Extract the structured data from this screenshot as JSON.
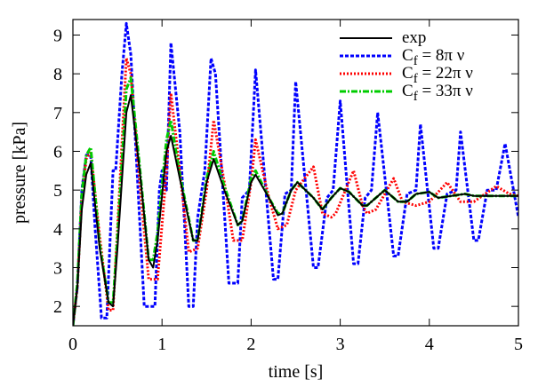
{
  "chart_data": {
    "type": "line",
    "title": "",
    "xlabel": "time [s]",
    "ylabel": "pressure [kPa]",
    "xlim": [
      0,
      5
    ],
    "ylim": [
      1.5,
      9.4
    ],
    "xticks": [
      "0",
      "1",
      "2",
      "3",
      "4",
      "5"
    ],
    "yticks": [
      "2",
      "3",
      "4",
      "5",
      "6",
      "7",
      "8",
      "9"
    ],
    "grid": false,
    "legend_position": "top-right",
    "series": [
      {
        "name": "exp",
        "color": "#000000",
        "style": "solid",
        "x": [
          0.0,
          0.05,
          0.1,
          0.15,
          0.2,
          0.3,
          0.4,
          0.45,
          0.5,
          0.6,
          0.65,
          0.75,
          0.85,
          0.9,
          0.95,
          1.05,
          1.1,
          1.2,
          1.35,
          1.4,
          1.5,
          1.58,
          1.7,
          1.85,
          1.9,
          2.0,
          2.05,
          2.2,
          2.3,
          2.35,
          2.45,
          2.52,
          2.7,
          2.8,
          2.9,
          3.0,
          3.1,
          3.25,
          3.3,
          3.45,
          3.5,
          3.65,
          3.75,
          3.85,
          4.0,
          4.1,
          4.25,
          4.4,
          4.5,
          4.7,
          4.9,
          5.0
        ],
        "y": [
          1.5,
          2.5,
          4.5,
          5.4,
          5.7,
          3.5,
          2.1,
          2.0,
          3.5,
          7.0,
          7.45,
          5.5,
          3.2,
          3.0,
          3.7,
          6.0,
          6.4,
          5.3,
          3.7,
          3.7,
          5.2,
          5.8,
          5.0,
          4.1,
          4.2,
          5.2,
          5.4,
          4.8,
          4.35,
          4.4,
          5.0,
          5.2,
          4.8,
          4.5,
          4.8,
          5.05,
          4.95,
          4.6,
          4.6,
          4.9,
          5.0,
          4.7,
          4.7,
          4.9,
          4.95,
          4.8,
          4.85,
          4.9,
          4.85,
          4.85,
          4.85,
          4.85
        ]
      },
      {
        "name": "C_f = 8π ν",
        "color": "#0000ff",
        "style": "dashed",
        "x": [
          0.0,
          0.05,
          0.1,
          0.15,
          0.2,
          0.25,
          0.32,
          0.38,
          0.45,
          0.48,
          0.55,
          0.6,
          0.65,
          0.72,
          0.8,
          0.85,
          0.92,
          0.97,
          1.0,
          1.05,
          1.1,
          1.2,
          1.3,
          1.35,
          1.4,
          1.48,
          1.55,
          1.6,
          1.75,
          1.8,
          1.85,
          1.9,
          1.98,
          2.05,
          2.25,
          2.3,
          2.38,
          2.45,
          2.5,
          2.7,
          2.75,
          2.85,
          2.92,
          3.0,
          3.15,
          3.2,
          3.28,
          3.35,
          3.42,
          3.6,
          3.65,
          3.75,
          3.85,
          3.9,
          4.05,
          4.1,
          4.2,
          4.3,
          4.35,
          4.5,
          4.55,
          4.65,
          4.75,
          4.85,
          5.0
        ],
        "y": [
          1.5,
          2.5,
          5.0,
          5.9,
          5.9,
          4.0,
          1.7,
          1.7,
          5.5,
          5.5,
          8.0,
          9.3,
          8.5,
          5.5,
          2.0,
          2.0,
          2.0,
          5.0,
          5.5,
          5.0,
          8.8,
          6.5,
          2.0,
          2.0,
          4.3,
          5.5,
          8.4,
          8.0,
          2.6,
          2.6,
          2.6,
          4.8,
          5.0,
          8.1,
          2.7,
          2.7,
          4.9,
          5.0,
          7.8,
          3.0,
          3.0,
          4.8,
          5.0,
          7.3,
          3.1,
          3.1,
          4.8,
          5.0,
          7.0,
          3.3,
          3.3,
          4.9,
          5.0,
          6.7,
          3.5,
          3.5,
          4.9,
          5.0,
          6.5,
          3.7,
          3.7,
          5.0,
          5.0,
          6.2,
          4.3
        ]
      },
      {
        "name": "C_f = 22π ν",
        "color": "#ff0000",
        "style": "dotted",
        "x": [
          0.0,
          0.05,
          0.1,
          0.15,
          0.2,
          0.3,
          0.4,
          0.45,
          0.5,
          0.6,
          0.65,
          0.75,
          0.85,
          0.95,
          1.05,
          1.1,
          1.2,
          1.3,
          1.4,
          1.5,
          1.58,
          1.7,
          1.8,
          1.9,
          2.0,
          2.05,
          2.2,
          2.3,
          2.4,
          2.5,
          2.7,
          2.8,
          2.9,
          2.95,
          3.15,
          3.25,
          3.3,
          3.4,
          3.6,
          3.7,
          3.85,
          4.0,
          4.2,
          4.35,
          4.5,
          4.75,
          4.9,
          5.0
        ],
        "y": [
          1.5,
          2.5,
          4.8,
          5.8,
          6.0,
          3.8,
          1.9,
          1.9,
          4.0,
          8.4,
          8.0,
          5.2,
          2.7,
          2.7,
          5.5,
          7.5,
          5.5,
          3.4,
          3.5,
          5.0,
          6.8,
          5.2,
          3.7,
          3.7,
          5.2,
          6.3,
          4.8,
          4.0,
          4.1,
          5.0,
          5.6,
          4.4,
          4.3,
          4.4,
          5.5,
          4.6,
          4.4,
          4.5,
          5.3,
          4.7,
          4.6,
          4.7,
          5.2,
          4.7,
          4.7,
          5.1,
          4.9,
          4.85
        ]
      },
      {
        "name": "C_f = 33π ν",
        "color": "#00cc00",
        "style": "dashdot",
        "x": [
          0.0,
          0.05,
          0.1,
          0.15,
          0.2,
          0.3,
          0.4,
          0.45,
          0.5,
          0.6,
          0.65,
          0.75,
          0.85,
          0.9,
          0.95,
          1.05,
          1.1,
          1.2,
          1.35,
          1.4,
          1.5,
          1.58,
          1.7,
          1.85,
          1.9,
          2.0,
          2.05,
          2.2,
          2.3,
          2.35,
          2.45,
          2.52,
          2.7,
          2.8,
          2.9,
          3.0,
          3.1,
          3.25,
          3.3,
          3.45,
          3.5,
          3.65,
          3.75,
          3.85,
          4.0,
          4.1,
          4.25,
          4.4,
          4.5,
          4.7,
          4.9,
          5.0
        ],
        "y": [
          1.5,
          2.6,
          4.9,
          5.9,
          6.1,
          3.6,
          2.1,
          2.1,
          3.8,
          7.6,
          7.9,
          5.6,
          3.2,
          3.2,
          3.9,
          6.3,
          6.8,
          5.4,
          3.7,
          3.7,
          5.3,
          6.0,
          5.1,
          4.1,
          4.2,
          5.3,
          5.5,
          4.8,
          4.4,
          4.4,
          5.0,
          5.2,
          4.8,
          4.5,
          4.8,
          5.05,
          4.95,
          4.6,
          4.6,
          4.9,
          5.0,
          4.7,
          4.7,
          4.9,
          4.95,
          4.8,
          4.85,
          4.9,
          4.85,
          4.85,
          4.85,
          4.85
        ]
      }
    ]
  }
}
